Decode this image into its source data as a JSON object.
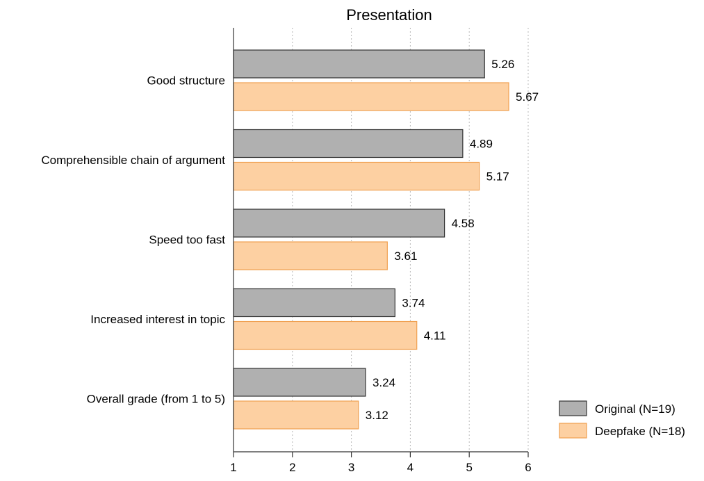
{
  "chart_data": {
    "type": "bar",
    "orientation": "horizontal",
    "title": "Presentation",
    "xlabel": "",
    "ylabel": "",
    "categories": [
      "Good structure",
      "Comprehensible chain of argument",
      "Speed too fast",
      "Increased interest in topic",
      "Overall grade (from 1 to 5)"
    ],
    "series": [
      {
        "name": "Original (N=19)",
        "values": [
          5.26,
          4.89,
          4.58,
          3.74,
          3.24
        ],
        "labels": [
          "5.26",
          "4.89",
          "4.58",
          "3.74",
          "3.24"
        ],
        "color": "#b0b0b0",
        "stroke": "#333333"
      },
      {
        "name": "Deepfake (N=18)",
        "values": [
          5.67,
          5.17,
          3.61,
          4.11,
          3.12
        ],
        "labels": [
          "5.67",
          "5.17",
          "3.61",
          "4.11",
          "3.12"
        ],
        "color": "#fdd0a2",
        "stroke": "#f0a050"
      }
    ],
    "xlim": [
      1,
      6
    ],
    "xticks": [
      "1",
      "2",
      "3",
      "4",
      "5",
      "6"
    ],
    "grid": true,
    "legend_position": "bottom-right"
  }
}
